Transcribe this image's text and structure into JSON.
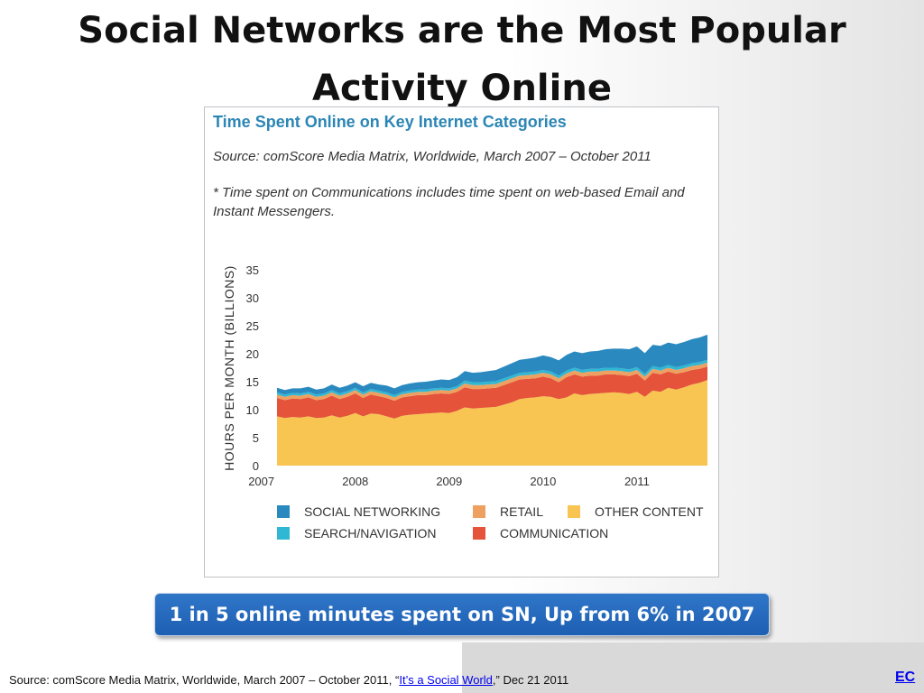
{
  "slide": {
    "title": "Social Networks are the Most Popular Activity Online",
    "callout": "1 in 5 online minutes spent on SN, Up from 6% in 2007",
    "footer": {
      "prefix": "Source: comScore Media Matrix, Worldwide, March 2007 – October 2011,  “",
      "link_text": "It’s a Social World",
      "suffix": ",” Dec 21 2011"
    },
    "ec_label": "EC"
  },
  "colors": {
    "social_networking": "#2a8ac0",
    "search_navigation": "#2fb7d4",
    "retail": "#eea060",
    "other_content": "#f8c552",
    "communication": "#e4533a",
    "title_blue": "#2b86b5",
    "callout_blue": "#2569bf"
  },
  "chart_data": {
    "type": "area",
    "stacked": true,
    "title": "Time Spent Online on Key Internet Categories",
    "subtitle": "Source: comScore Media Matrix, Worldwide, March 2007 – October 2011",
    "note": "* Time spent on Communications includes time spent on web-based Email and Instant Messengers.",
    "ylabel": "HOURS PER MONTH (BILLIONS)",
    "xlabel": "",
    "ylim": [
      0,
      35
    ],
    "yticks": [
      0,
      5,
      10,
      15,
      20,
      25,
      30,
      35
    ],
    "xticks": [
      "2007",
      "2008",
      "2009",
      "2010",
      "2011"
    ],
    "x_start": "2007-03",
    "x_end": "2011-10",
    "grid": false,
    "legend_position": "bottom",
    "series": [
      {
        "name": "OTHER CONTENT",
        "color": "#f8c552",
        "values": [
          8.8,
          8.5,
          8.7,
          8.6,
          8.8,
          8.5,
          8.6,
          9.0,
          8.6,
          8.9,
          9.4,
          8.8,
          9.3,
          9.2,
          8.8,
          8.4,
          8.9,
          9.1,
          9.2,
          9.3,
          9.4,
          9.5,
          9.4,
          9.8,
          10.4,
          10.2,
          10.3,
          10.4,
          10.5,
          10.9,
          11.3,
          11.9,
          12.1,
          12.2,
          12.4,
          12.3,
          11.9,
          12.2,
          12.9,
          12.6,
          12.8,
          12.9,
          13.0,
          13.1,
          13.0,
          12.8,
          13.2,
          12.3,
          13.4,
          13.2,
          13.9,
          13.6,
          14.0,
          14.5,
          14.8,
          15.3
        ]
      },
      {
        "name": "COMMUNICATION",
        "color": "#e4533a",
        "values": [
          3.3,
          3.2,
          3.3,
          3.3,
          3.4,
          3.2,
          3.3,
          3.5,
          3.3,
          3.4,
          3.5,
          3.3,
          3.4,
          3.2,
          3.3,
          3.2,
          3.3,
          3.3,
          3.4,
          3.3,
          3.4,
          3.4,
          3.4,
          3.4,
          3.6,
          3.5,
          3.4,
          3.4,
          3.4,
          3.5,
          3.6,
          3.5,
          3.4,
          3.4,
          3.5,
          3.3,
          3.0,
          3.6,
          3.4,
          3.3,
          3.3,
          3.2,
          3.3,
          3.2,
          3.2,
          3.2,
          3.2,
          2.9,
          3.2,
          3.1,
          2.9,
          2.8,
          2.7,
          2.6,
          2.5,
          2.4
        ]
      },
      {
        "name": "RETAIL",
        "color": "#eea060",
        "values": [
          0.6,
          0.6,
          0.6,
          0.6,
          0.6,
          0.6,
          0.6,
          0.6,
          0.6,
          0.6,
          0.6,
          0.6,
          0.6,
          0.6,
          0.6,
          0.6,
          0.6,
          0.6,
          0.6,
          0.6,
          0.6,
          0.6,
          0.6,
          0.6,
          0.7,
          0.7,
          0.7,
          0.7,
          0.7,
          0.7,
          0.7,
          0.7,
          0.7,
          0.7,
          0.7,
          0.7,
          0.7,
          0.7,
          0.7,
          0.7,
          0.7,
          0.7,
          0.7,
          0.7,
          0.7,
          0.7,
          0.7,
          0.7,
          0.7,
          0.7,
          0.7,
          0.7,
          0.7,
          0.7,
          0.7,
          0.7
        ]
      },
      {
        "name": "SEARCH/NAVIGATION",
        "color": "#2fb7d4",
        "values": [
          0.4,
          0.4,
          0.4,
          0.4,
          0.4,
          0.4,
          0.4,
          0.4,
          0.4,
          0.4,
          0.4,
          0.4,
          0.4,
          0.4,
          0.4,
          0.4,
          0.4,
          0.4,
          0.4,
          0.4,
          0.4,
          0.4,
          0.4,
          0.4,
          0.5,
          0.5,
          0.5,
          0.5,
          0.5,
          0.5,
          0.5,
          0.5,
          0.5,
          0.5,
          0.5,
          0.5,
          0.5,
          0.5,
          0.5,
          0.5,
          0.5,
          0.5,
          0.5,
          0.5,
          0.5,
          0.5,
          0.5,
          0.5,
          0.5,
          0.5,
          0.5,
          0.5,
          0.5,
          0.5,
          0.5,
          0.5
        ]
      },
      {
        "name": "SOCIAL NETWORKING",
        "color": "#2a8ac0",
        "values": [
          0.8,
          0.8,
          0.8,
          0.9,
          0.9,
          0.9,
          0.9,
          1.0,
          1.0,
          1.0,
          1.0,
          1.1,
          1.1,
          1.1,
          1.2,
          1.2,
          1.2,
          1.3,
          1.3,
          1.4,
          1.4,
          1.5,
          1.5,
          1.6,
          1.7,
          1.7,
          1.8,
          1.9,
          2.0,
          2.1,
          2.2,
          2.3,
          2.4,
          2.5,
          2.6,
          2.6,
          2.7,
          2.8,
          2.9,
          3.0,
          3.1,
          3.2,
          3.3,
          3.4,
          3.5,
          3.6,
          3.7,
          3.7,
          3.8,
          3.9,
          4.0,
          4.1,
          4.2,
          4.3,
          4.4,
          4.5
        ]
      }
    ],
    "legend_order": [
      "SOCIAL NETWORKING",
      "RETAIL",
      "OTHER CONTENT",
      "SEARCH/NAVIGATION",
      "COMMUNICATION"
    ]
  }
}
